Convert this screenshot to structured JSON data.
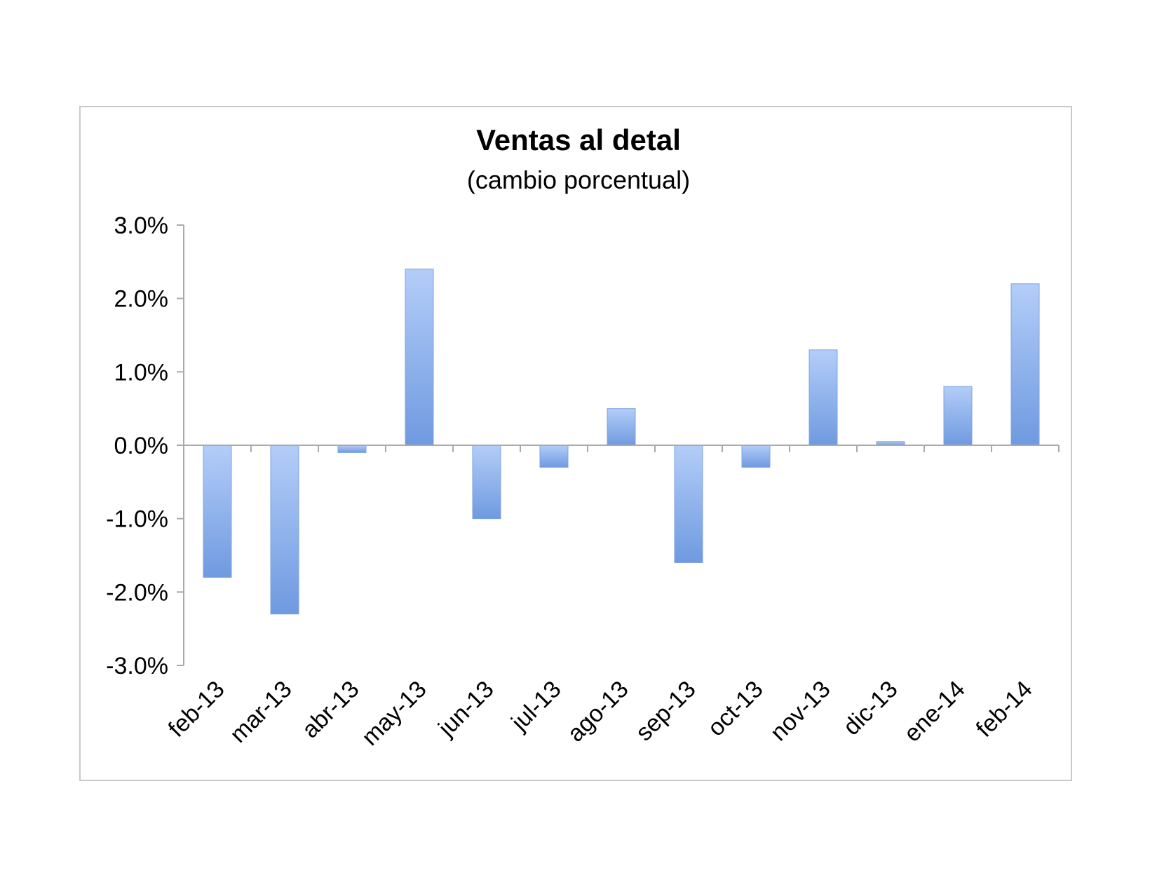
{
  "chart_data": {
    "type": "bar",
    "title": "Ventas al detal",
    "subtitle": "(cambio porcentual)",
    "xlabel": "",
    "ylabel": "",
    "categories": [
      "feb-13",
      "mar-13",
      "abr-13",
      "may-13",
      "jun-13",
      "jul-13",
      "ago-13",
      "sep-13",
      "oct-13",
      "nov-13",
      "dic-13",
      "ene-14",
      "feb-14"
    ],
    "values": [
      -1.8,
      -2.3,
      -0.1,
      2.4,
      -1.0,
      -0.3,
      0.5,
      -1.6,
      -0.3,
      1.3,
      0.05,
      0.8,
      2.2
    ],
    "ylim": [
      -3.0,
      3.0
    ],
    "yticks": [
      "3.0%",
      "2.0%",
      "1.0%",
      "0.0%",
      "-1.0%",
      "-2.0%",
      "-3.0%"
    ],
    "ytick_values": [
      3,
      2,
      1,
      0,
      -1,
      -2,
      -3
    ],
    "grid": false,
    "legend": "none",
    "colors": {
      "bar_light": "#b3cdf8",
      "bar_dark": "#6f9ae0",
      "axis": "#aaaaaa",
      "frame": "#c8c8c8"
    }
  }
}
